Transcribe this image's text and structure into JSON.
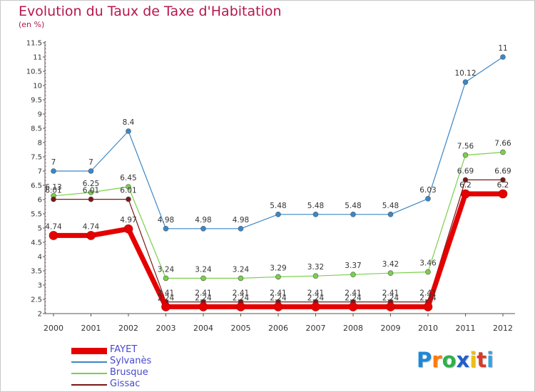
{
  "chart_data": {
    "type": "line",
    "title": "Evolution du Taux de Taxe d'Habitation",
    "subtitle": "(en %)",
    "x": [
      "2000",
      "2001",
      "2002",
      "2003",
      "2004",
      "2005",
      "2006",
      "2007",
      "2008",
      "2009",
      "2010",
      "2011",
      "2012"
    ],
    "yticks": [
      "2",
      "2.5",
      "3",
      "3.5",
      "4",
      "4.5",
      "5",
      "5.5",
      "6",
      "6.5",
      "7",
      "7.5",
      "8",
      "8.5",
      "9",
      "9.5",
      "10",
      "10.5",
      "11",
      "11.5"
    ],
    "ylim": [
      2,
      11.5
    ],
    "grid": false,
    "legend_position": "bottom-left",
    "series": [
      {
        "name": "FAYET",
        "color": "#e50000",
        "values": [
          4.74,
          4.74,
          4.97,
          2.24,
          2.24,
          2.24,
          2.24,
          2.24,
          2.24,
          2.24,
          2.24,
          6.2,
          6.2
        ],
        "labels": [
          "4.74",
          "4.74",
          "4.97",
          "2.24",
          "2.24",
          "2.24",
          "2.24",
          "2.24",
          "2.24",
          "2.24",
          "2.24",
          "6.2",
          "6.2"
        ]
      },
      {
        "name": "Sylvanès",
        "color": "#3a87c8",
        "values": [
          7,
          7,
          8.4,
          4.98,
          4.98,
          4.98,
          5.48,
          5.48,
          5.48,
          5.48,
          6.03,
          10.12,
          11
        ],
        "labels": [
          "7",
          "7",
          "8.4",
          "4.98",
          "4.98",
          "4.98",
          "5.48",
          "5.48",
          "5.48",
          "5.48",
          "6.03",
          "10.12",
          "11"
        ]
      },
      {
        "name": "Brusque",
        "color": "#7ad04a",
        "values": [
          6.13,
          6.25,
          6.45,
          3.24,
          3.24,
          3.24,
          3.29,
          3.32,
          3.37,
          3.42,
          3.46,
          7.56,
          7.66
        ],
        "labels": [
          "6.13",
          "6.25",
          "6.45",
          "3.24",
          "3.24",
          "3.24",
          "3.29",
          "3.32",
          "3.37",
          "3.42",
          "3.46",
          "7.56",
          "7.66"
        ]
      },
      {
        "name": "Gissac",
        "color": "#7a1818",
        "values": [
          6.01,
          6.01,
          6.01,
          2.41,
          2.41,
          2.41,
          2.41,
          2.41,
          2.41,
          2.41,
          2.41,
          6.69,
          6.69
        ],
        "labels": [
          "6.01",
          "6.01",
          "6.01",
          "2.41",
          "2.41",
          "2.41",
          "2.41",
          "2.41",
          "2.41",
          "2.41",
          "2.41",
          "6.69",
          "6.69"
        ]
      }
    ]
  },
  "logo": {
    "letters": [
      "P",
      "r",
      "o",
      "x",
      "i",
      "t",
      "i"
    ],
    "colors": [
      "#1e88d8",
      "#ff7b00",
      "#2cb24a",
      "#2060c8",
      "#f0c000",
      "#d83a2a",
      "#3aa0e0"
    ]
  }
}
